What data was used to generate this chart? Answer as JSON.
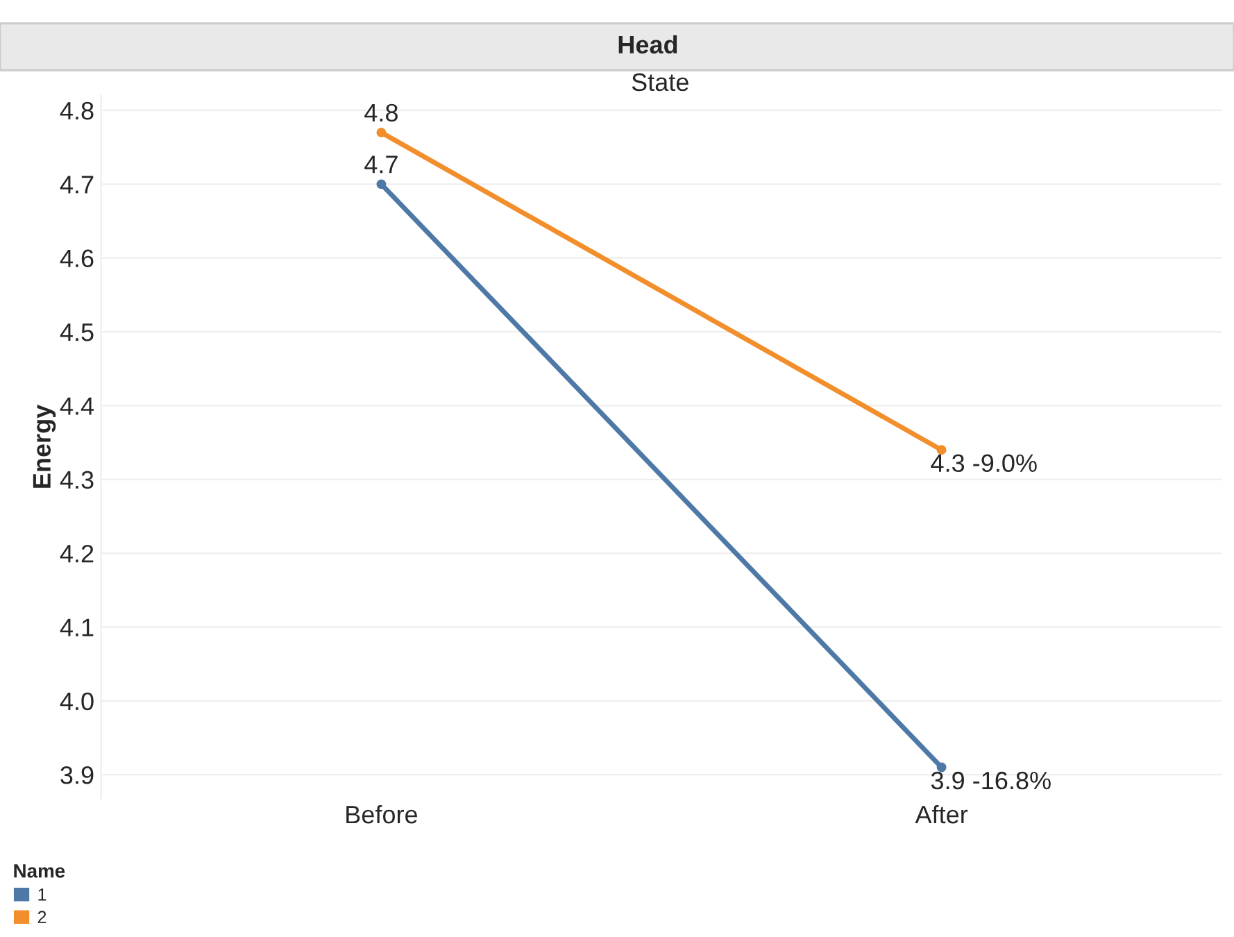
{
  "chart_data": {
    "type": "line",
    "title": "Head",
    "subtitle": "State",
    "ylabel": "Energy",
    "legend_title": "Name",
    "categories": [
      "Before",
      "After"
    ],
    "series": [
      {
        "name": "1",
        "color": "#4e79a7",
        "values": [
          4.7,
          3.91
        ],
        "value_labels": [
          "4.7",
          "3.9 -16.8%"
        ]
      },
      {
        "name": "2",
        "color": "#f28e2b",
        "values": [
          4.77,
          4.34
        ],
        "value_labels": [
          "4.8",
          "4.3 -9.0%"
        ]
      }
    ],
    "ylim": [
      3.868,
      4.82
    ],
    "yticks": [
      3.9,
      {
        "value": 4.0,
        "label": "4.0"
      },
      4.1,
      4.2,
      4.3,
      4.4,
      4.5,
      4.6,
      4.7,
      4.8
    ],
    "grid": "y",
    "legend": "bottom left",
    "marker": "circle",
    "line_style": "solid"
  }
}
